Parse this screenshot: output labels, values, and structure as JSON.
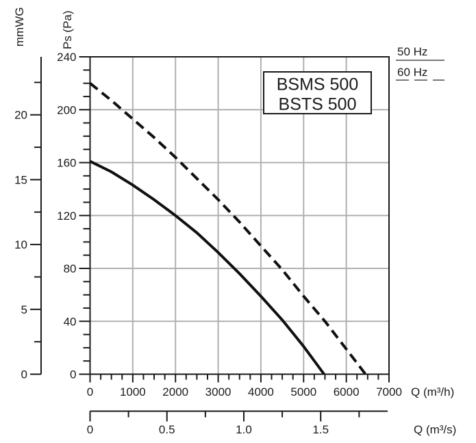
{
  "chart_data": {
    "type": "line",
    "model_box": {
      "lines": [
        "BSMS 500",
        "BSTS 500"
      ]
    },
    "legend": [
      {
        "label": "50 Hz",
        "style": "solid"
      },
      {
        "label": "60 Hz",
        "style": "dashed"
      }
    ],
    "y_primary": {
      "label": "Ps (Pa)",
      "min": 0,
      "max": 240,
      "major_ticks": [
        {
          "v": 0,
          "t": "0"
        },
        {
          "v": 40,
          "t": "40"
        },
        {
          "v": 80,
          "t": "80"
        },
        {
          "v": 120,
          "t": "120"
        },
        {
          "v": 160,
          "t": "160"
        },
        {
          "v": 200,
          "t": "200"
        },
        {
          "v": 240,
          "t": "240"
        }
      ],
      "minor_step": 10,
      "grid": true
    },
    "y_secondary": {
      "label": "mmWG",
      "major_ticks": [
        {
          "v": 0,
          "t": "0"
        },
        {
          "v": 5,
          "t": "5"
        },
        {
          "v": 10,
          "t": "10"
        },
        {
          "v": 15,
          "t": "15"
        },
        {
          "v": 20,
          "t": "20"
        }
      ],
      "minor_ticks": [
        2.5,
        7.5,
        12.5,
        17.5,
        22.5
      ],
      "pa_per_unit": 9.80665
    },
    "x_primary": {
      "label": "Q (m³/h)",
      "min": 0,
      "max": 7000,
      "major_ticks": [
        {
          "v": 0,
          "t": "0"
        },
        {
          "v": 1000,
          "t": "1000"
        },
        {
          "v": 2000,
          "t": "2000"
        },
        {
          "v": 3000,
          "t": "3000"
        },
        {
          "v": 4000,
          "t": "4000"
        },
        {
          "v": 5000,
          "t": "5000"
        },
        {
          "v": 6000,
          "t": "6000"
        },
        {
          "v": 7000,
          "t": "7000"
        }
      ],
      "minor_step": 250,
      "grid": true
    },
    "x_secondary": {
      "label": "Q (m³/s)",
      "major_ticks": [
        {
          "v": 0,
          "t": "0"
        },
        {
          "v": 0.5,
          "t": "0.5"
        },
        {
          "v": 1,
          "t": "1.0"
        },
        {
          "v": 1.5,
          "t": "1.5"
        }
      ],
      "minor_ticks": [
        0.25,
        0.75,
        1.25,
        1.75
      ],
      "m3h_per_unit": 3600
    },
    "series": [
      {
        "name": "50 Hz",
        "style": "solid",
        "points": [
          [
            0,
            161
          ],
          [
            500,
            153
          ],
          [
            1000,
            143
          ],
          [
            1500,
            132
          ],
          [
            2000,
            120
          ],
          [
            2500,
            107
          ],
          [
            3000,
            92
          ],
          [
            3500,
            76
          ],
          [
            4000,
            59
          ],
          [
            4500,
            41
          ],
          [
            5000,
            21
          ],
          [
            5480,
            0
          ]
        ]
      },
      {
        "name": "60 Hz",
        "style": "dashed",
        "points": [
          [
            0,
            220
          ],
          [
            500,
            207
          ],
          [
            1000,
            193
          ],
          [
            1500,
            179
          ],
          [
            2000,
            164
          ],
          [
            2500,
            148
          ],
          [
            3000,
            132
          ],
          [
            3500,
            115
          ],
          [
            4000,
            97
          ],
          [
            4500,
            79
          ],
          [
            5000,
            59
          ],
          [
            5500,
            40
          ],
          [
            6000,
            19
          ],
          [
            6450,
            0
          ]
        ]
      }
    ],
    "colors": {
      "curve": "#101010",
      "grid": "#b0b0b0",
      "axis": "#1a1a1a",
      "text": "#1a1a1a",
      "legend_line": "#787878",
      "background": "#ffffff"
    }
  }
}
